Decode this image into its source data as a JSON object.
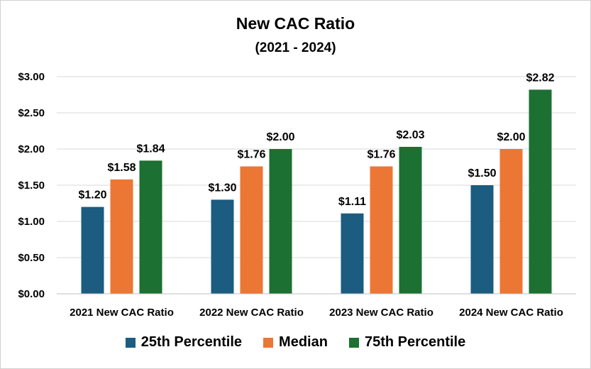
{
  "chart_data": {
    "type": "bar",
    "title": "New CAC Ratio",
    "subtitle": "(2021 - 2024)",
    "categories": [
      "2021 New CAC Ratio",
      "2022 New CAC Ratio",
      "2023 New CAC Ratio",
      "2024 New CAC Ratio"
    ],
    "series": [
      {
        "name": "25th Percentile",
        "color": "#1b5c80",
        "values": [
          1.2,
          1.3,
          1.11,
          1.5
        ],
        "labels": [
          "$1.20",
          "$1.30",
          "$1.11",
          "$1.50"
        ]
      },
      {
        "name": "Median",
        "color": "#ec7634",
        "values": [
          1.58,
          1.76,
          1.76,
          2.0
        ],
        "labels": [
          "$1.58",
          "$1.76",
          "$1.76",
          "$2.00"
        ]
      },
      {
        "name": "75th Percentile",
        "color": "#1c7031",
        "values": [
          1.84,
          2.0,
          2.03,
          2.82
        ],
        "labels": [
          "$1.84",
          "$2.00",
          "$2.03",
          "$2.82"
        ]
      }
    ],
    "ylim": [
      0,
      3.0
    ],
    "yticks": [
      0,
      0.5,
      1.0,
      1.5,
      2.0,
      2.5,
      3.0
    ],
    "ytick_labels": [
      "$0.00",
      "$0.50",
      "$1.00",
      "$1.50",
      "$2.00",
      "$2.50",
      "$3.00"
    ],
    "grid": true,
    "gridline_color": "#d9d9d9",
    "legend_position": "bottom"
  }
}
